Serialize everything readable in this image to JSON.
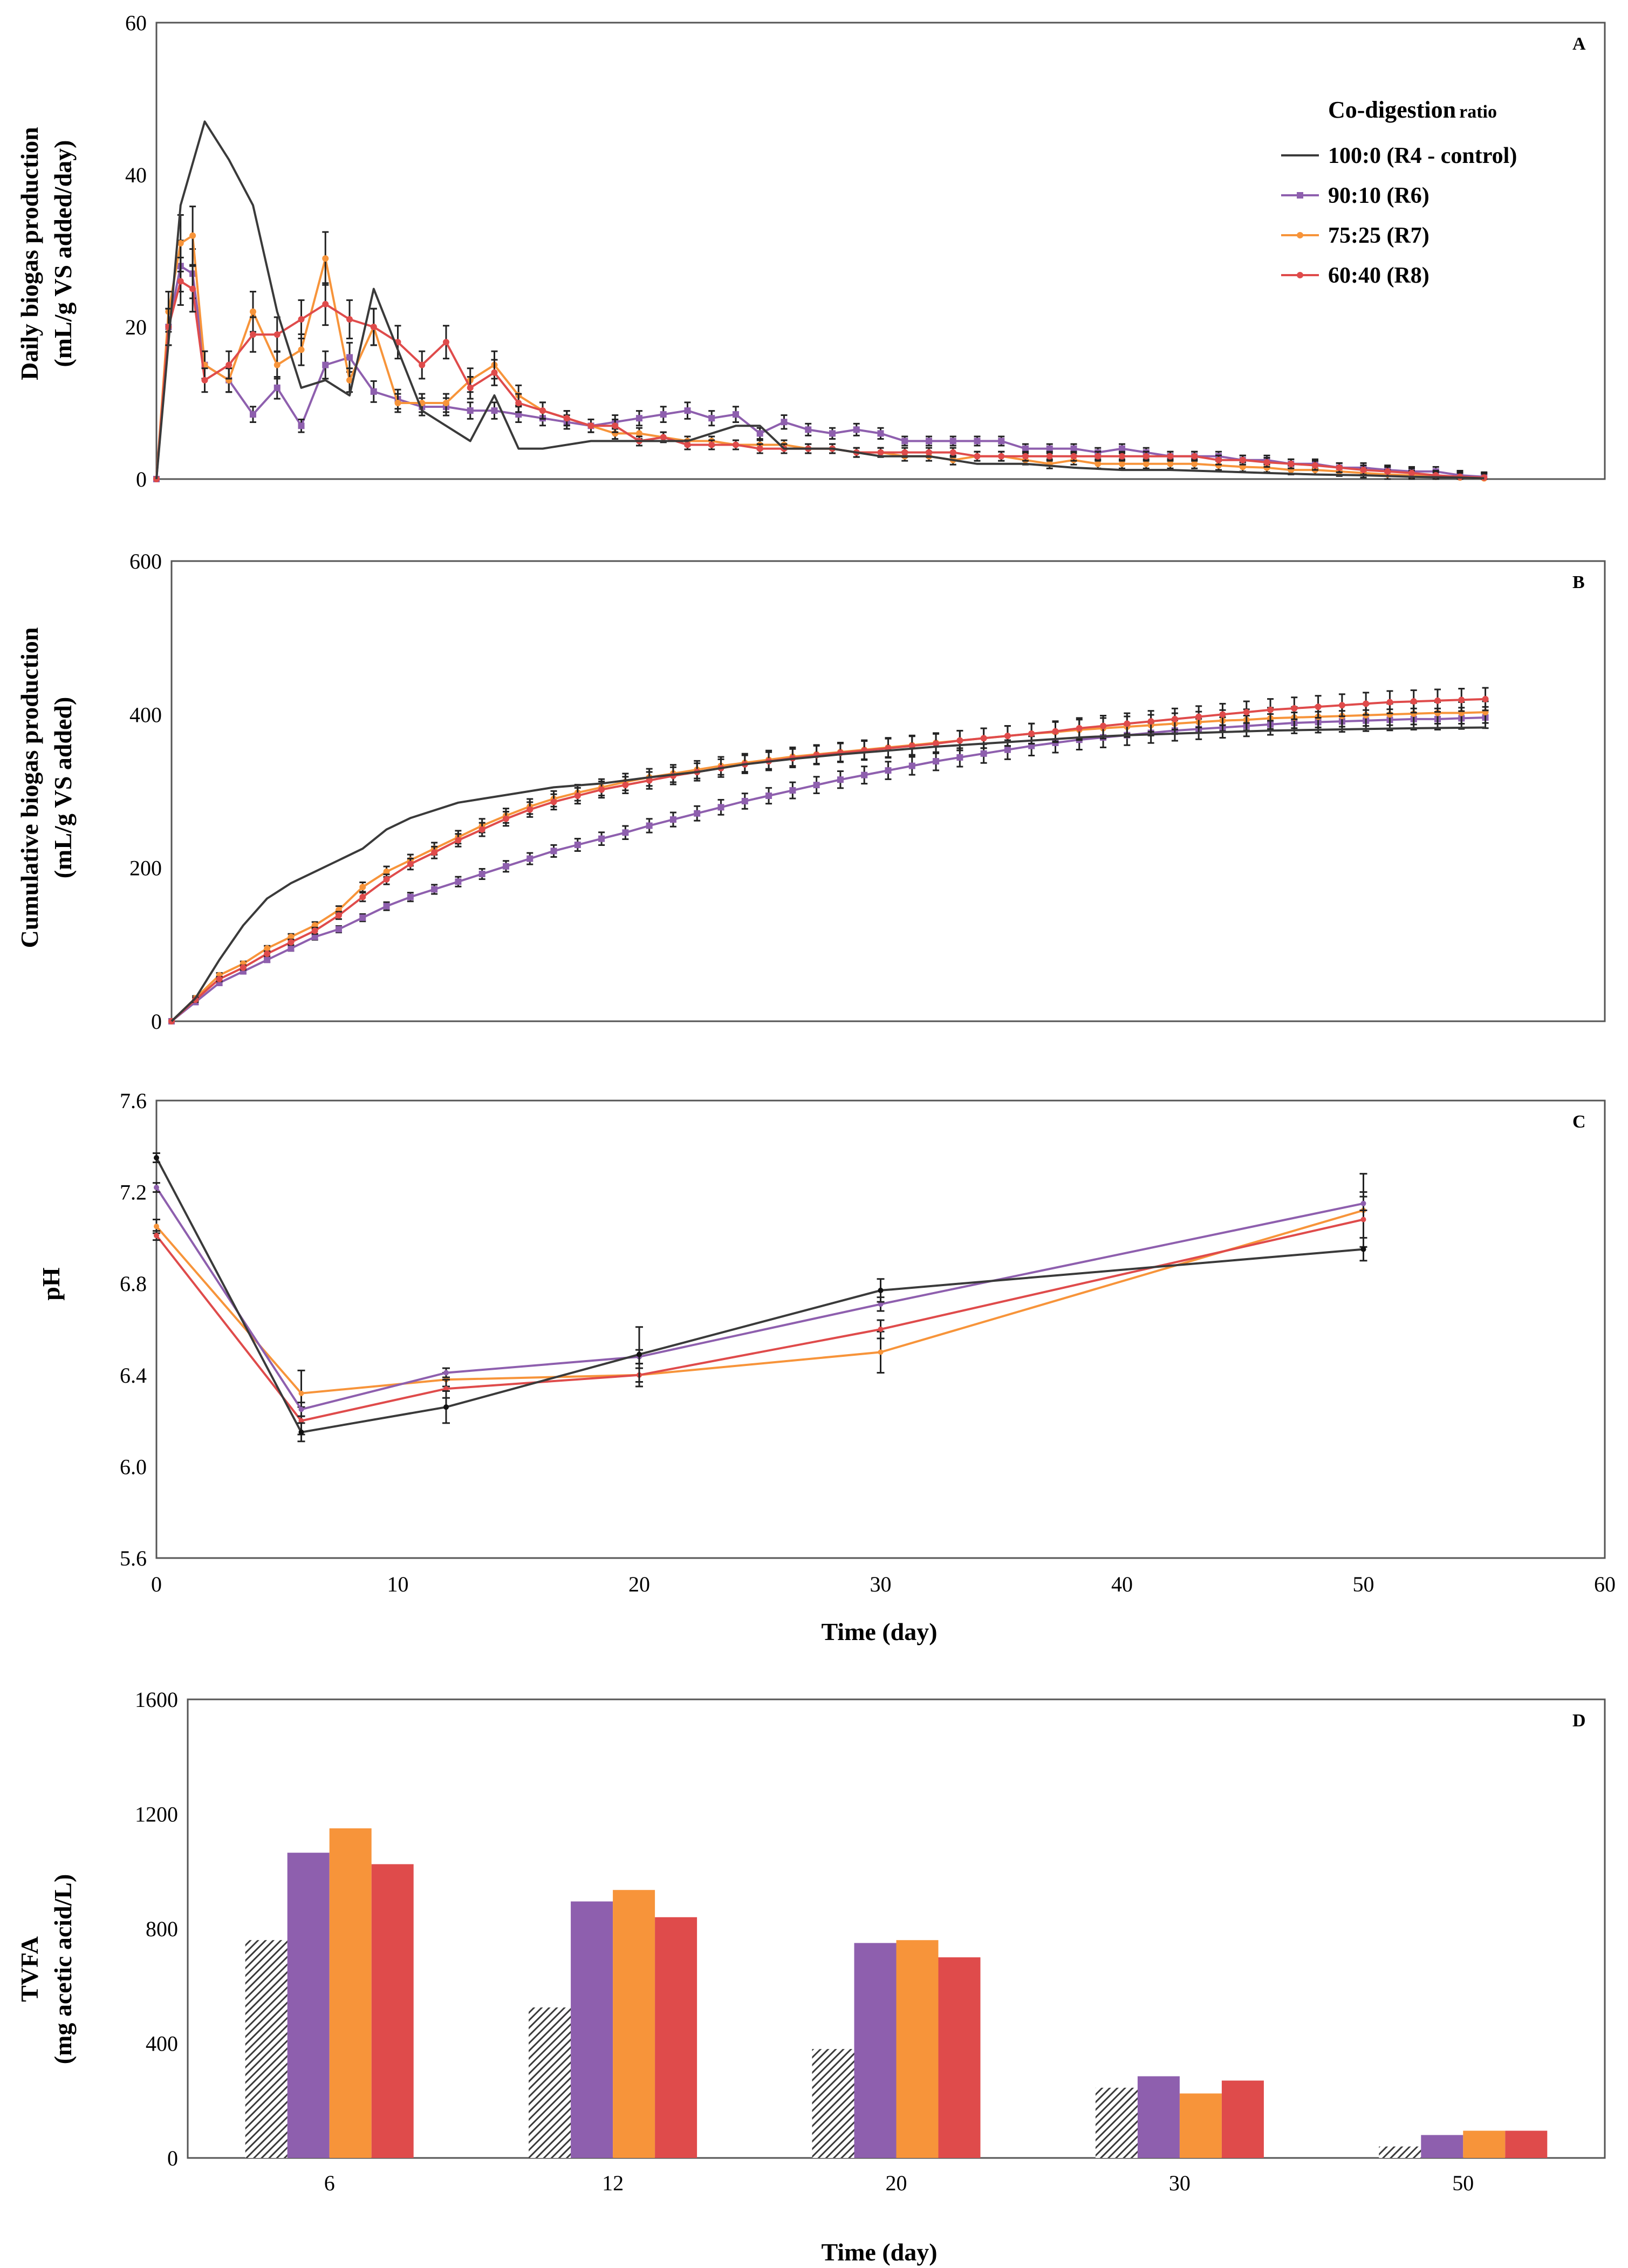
{
  "colors": {
    "R4": "#3a3a3a",
    "R6": "#8e5fae",
    "R7": "#f7943a",
    "R8": "#df4b4b",
    "axis": "#555555"
  },
  "chart_data": [
    {
      "type": "line",
      "panel_label": "A",
      "ylabel_line1": "Daily biogas production",
      "ylabel_line2": "(mL/g VS added/day)",
      "xlim": [
        0,
        60
      ],
      "ylim": [
        0,
        60
      ],
      "yticks": [
        "0",
        "20",
        "40",
        "60"
      ],
      "legend_title": "Co-digestion",
      "legend_subtitle": "ratio",
      "legend_position": "top-right",
      "series": [
        {
          "key": "R4",
          "name": "100:0 (R4 - control)",
          "x": [
            0,
            1,
            2,
            3,
            4,
            5,
            6,
            7,
            8,
            9,
            10,
            11,
            12,
            13,
            14,
            15,
            16,
            18,
            20,
            22,
            24,
            25,
            26,
            28,
            30,
            32,
            34,
            36,
            38,
            40,
            42,
            44,
            46,
            48,
            50,
            52,
            54,
            55
          ],
          "y": [
            0,
            36,
            47,
            42,
            36,
            22,
            12,
            13,
            11,
            25,
            17,
            9,
            7,
            5,
            11,
            4,
            4,
            5,
            5,
            5,
            7,
            7,
            4,
            4,
            3,
            3,
            2,
            2,
            1.5,
            1.2,
            1.2,
            1,
            0.8,
            0.6,
            0.5,
            0.3,
            0.2,
            0.1
          ]
        },
        {
          "key": "R6",
          "name": "90:10 (R6)",
          "x": [
            0,
            0.5,
            1,
            1.5,
            2,
            3,
            4,
            5,
            6,
            7,
            8,
            9,
            10,
            11,
            12,
            13,
            14,
            15,
            16,
            17,
            18,
            19,
            20,
            21,
            22,
            23,
            24,
            25,
            26,
            27,
            28,
            29,
            30,
            31,
            32,
            33,
            34,
            35,
            36,
            37,
            38,
            39,
            40,
            41,
            42,
            43,
            44,
            45,
            46,
            47,
            48,
            49,
            50,
            51,
            52,
            53,
            54,
            55
          ],
          "y": [
            0,
            20,
            28,
            27,
            15,
            13,
            8.5,
            12,
            7,
            15,
            16,
            11.5,
            10.5,
            9.5,
            9.5,
            9,
            9,
            8.5,
            8,
            7.5,
            7,
            7.5,
            8,
            8.5,
            9,
            8,
            8.5,
            6,
            7.5,
            6.5,
            6,
            6.5,
            6,
            5,
            5,
            5,
            5,
            5,
            4,
            4,
            4,
            3.5,
            4,
            3.5,
            3,
            3,
            3,
            2.5,
            2.5,
            2,
            2,
            1.5,
            1.5,
            1.2,
            1,
            1,
            0.5,
            0.3
          ]
        },
        {
          "key": "R7",
          "name": "75:25 (R7)",
          "x": [
            0,
            0.5,
            1,
            1.5,
            2,
            3,
            4,
            5,
            6,
            7,
            8,
            9,
            10,
            11,
            12,
            13,
            14,
            15,
            16,
            17,
            18,
            19,
            20,
            21,
            22,
            23,
            24,
            25,
            26,
            27,
            28,
            29,
            30,
            31,
            32,
            33,
            34,
            35,
            36,
            37,
            38,
            39,
            40,
            41,
            42,
            43,
            44,
            45,
            46,
            47,
            48,
            49,
            50,
            51,
            52,
            53,
            54,
            55
          ],
          "y": [
            0,
            22,
            31,
            32,
            15,
            13,
            22,
            15,
            17,
            29,
            13,
            20,
            10,
            10,
            10,
            13,
            15,
            11,
            9,
            8,
            7,
            6,
            6,
            5.5,
            5,
            5,
            4.5,
            4.5,
            4.5,
            4,
            4,
            3.5,
            3.5,
            3,
            3,
            2.5,
            3,
            3,
            2.5,
            2,
            2.5,
            2,
            2,
            2,
            2,
            2,
            1.8,
            1.6,
            1.5,
            1.2,
            1.2,
            1,
            0.8,
            0.6,
            0.5,
            0.3,
            0.2,
            0.1
          ]
        },
        {
          "key": "R8",
          "name": "60:40 (R8)",
          "x": [
            0,
            0.5,
            1,
            1.5,
            2,
            3,
            4,
            5,
            6,
            7,
            8,
            9,
            10,
            11,
            12,
            13,
            14,
            15,
            16,
            17,
            18,
            19,
            20,
            21,
            22,
            23,
            24,
            25,
            26,
            27,
            28,
            29,
            30,
            31,
            32,
            33,
            34,
            35,
            36,
            37,
            38,
            39,
            40,
            41,
            42,
            43,
            44,
            45,
            46,
            47,
            48,
            49,
            50,
            51,
            52,
            53,
            54,
            55
          ],
          "y": [
            0,
            20,
            26,
            25,
            13,
            15,
            19,
            19,
            21,
            23,
            21,
            20,
            18,
            15,
            18,
            12,
            14,
            10,
            9,
            8,
            7,
            7,
            5,
            5.5,
            4.5,
            4.5,
            4.5,
            4,
            4,
            4,
            4,
            3.5,
            3.5,
            3.5,
            3.5,
            3.5,
            3,
            3,
            3,
            3,
            3,
            3,
            3,
            3,
            3,
            3,
            2.5,
            2.5,
            2.2,
            2,
            1.8,
            1.5,
            1.2,
            1,
            0.8,
            0.5,
            0.3,
            0.2
          ]
        }
      ]
    },
    {
      "type": "line",
      "panel_label": "B",
      "ylabel_line1": "Cumulative biogas production",
      "ylabel_line2": "(mL/g VS added)",
      "xlim": [
        0,
        60
      ],
      "ylim": [
        0,
        600
      ],
      "yticks": [
        "0",
        "200",
        "400",
        "600"
      ],
      "series": [
        {
          "key": "R4",
          "name": "100:0 (R4 - control)",
          "x": [
            0,
            1,
            2,
            3,
            4,
            5,
            6,
            7,
            8,
            9,
            10,
            12,
            14,
            16,
            18,
            20,
            22,
            24,
            26,
            28,
            30,
            32,
            34,
            36,
            38,
            40,
            42,
            44,
            46,
            48,
            50,
            52,
            55
          ],
          "y": [
            0,
            30,
            80,
            125,
            160,
            180,
            195,
            210,
            225,
            250,
            265,
            285,
            295,
            305,
            310,
            318,
            325,
            335,
            342,
            348,
            353,
            358,
            362,
            366,
            370,
            373,
            375,
            377,
            379,
            380,
            381,
            382,
            383
          ]
        },
        {
          "key": "R6",
          "name": "90:10 (R6)",
          "x": [
            0,
            1,
            2,
            3,
            4,
            5,
            6,
            7,
            8,
            9,
            10,
            11,
            12,
            13,
            14,
            15,
            16,
            17,
            18,
            19,
            20,
            21,
            22,
            23,
            24,
            25,
            26,
            27,
            28,
            29,
            30,
            31,
            32,
            33,
            34,
            35,
            36,
            37,
            38,
            39,
            40,
            41,
            42,
            43,
            44,
            45,
            46,
            47,
            48,
            49,
            50,
            51,
            52,
            53,
            54,
            55
          ],
          "y": [
            0,
            25,
            50,
            65,
            80,
            95,
            110,
            120,
            135,
            150,
            162,
            172,
            182,
            192,
            202,
            212,
            222,
            230,
            238,
            246,
            255,
            263,
            271,
            279,
            287,
            294,
            301,
            308,
            315,
            321,
            327,
            333,
            339,
            344,
            349,
            354,
            359,
            363,
            367,
            370,
            373,
            376,
            379,
            381,
            383,
            385,
            387,
            389,
            390,
            391,
            392,
            393,
            394,
            394,
            395,
            396
          ]
        },
        {
          "key": "R7",
          "name": "75:25 (R7)",
          "x": [
            0,
            1,
            2,
            3,
            4,
            5,
            6,
            7,
            8,
            9,
            10,
            11,
            12,
            13,
            14,
            15,
            16,
            17,
            18,
            19,
            20,
            21,
            22,
            23,
            24,
            25,
            26,
            27,
            28,
            29,
            30,
            31,
            32,
            33,
            34,
            35,
            36,
            37,
            38,
            39,
            40,
            41,
            42,
            43,
            44,
            45,
            46,
            47,
            48,
            49,
            50,
            51,
            52,
            53,
            54,
            55
          ],
          "y": [
            0,
            30,
            60,
            75,
            95,
            110,
            125,
            145,
            175,
            195,
            210,
            225,
            240,
            255,
            268,
            280,
            290,
            298,
            305,
            312,
            318,
            323,
            328,
            333,
            337,
            341,
            345,
            348,
            351,
            354,
            357,
            360,
            363,
            366,
            369,
            372,
            375,
            377,
            380,
            382,
            384,
            386,
            388,
            390,
            392,
            393,
            395,
            396,
            397,
            398,
            399,
            400,
            401,
            402,
            402,
            403
          ]
        },
        {
          "key": "R8",
          "name": "60:40 (R8)",
          "x": [
            0,
            1,
            2,
            3,
            4,
            5,
            6,
            7,
            8,
            9,
            10,
            11,
            12,
            13,
            14,
            15,
            16,
            17,
            18,
            19,
            20,
            21,
            22,
            23,
            24,
            25,
            26,
            27,
            28,
            29,
            30,
            31,
            32,
            33,
            34,
            35,
            36,
            37,
            38,
            39,
            40,
            41,
            42,
            43,
            44,
            45,
            46,
            47,
            48,
            49,
            50,
            51,
            52,
            53,
            54,
            55
          ],
          "y": [
            0,
            28,
            55,
            70,
            88,
            103,
            118,
            138,
            162,
            185,
            205,
            220,
            236,
            250,
            264,
            276,
            286,
            294,
            302,
            308,
            314,
            320,
            325,
            330,
            335,
            339,
            343,
            347,
            350,
            353,
            356,
            359,
            362,
            366,
            369,
            372,
            375,
            378,
            382,
            385,
            388,
            391,
            394,
            397,
            400,
            403,
            406,
            408,
            410,
            412,
            414,
            416,
            417,
            418,
            419,
            420
          ]
        }
      ]
    },
    {
      "type": "line",
      "panel_label": "C",
      "ylabel": "pH",
      "xlabel": "Time (day)",
      "xlim": [
        0,
        60
      ],
      "ylim": [
        5.6,
        7.6
      ],
      "yticks": [
        "5.6",
        "6.0",
        "6.4",
        "6.8",
        "7.2",
        "7.6"
      ],
      "xticks": [
        "0",
        "10",
        "20",
        "30",
        "40",
        "50",
        "60"
      ],
      "series": [
        {
          "key": "R4",
          "name": "100:0 (R4 - control)",
          "x": [
            0,
            6,
            12,
            20,
            30,
            50
          ],
          "y": [
            7.35,
            6.15,
            6.26,
            6.49,
            6.77,
            6.95
          ],
          "err": [
            0.02,
            0.04,
            0.07,
            0.12,
            0.05,
            0.05
          ]
        },
        {
          "key": "R6",
          "name": "90:10 (R6)",
          "x": [
            0,
            6,
            12,
            20,
            30,
            50
          ],
          "y": [
            7.22,
            6.25,
            6.41,
            6.48,
            6.71,
            7.15
          ],
          "err": [
            0.02,
            0.03,
            0.02,
            0.03,
            0.03,
            0.03
          ]
        },
        {
          "key": "R7",
          "name": "75:25 (R7)",
          "x": [
            0,
            6,
            12,
            20,
            30,
            50
          ],
          "y": [
            7.05,
            6.32,
            6.38,
            6.4,
            6.5,
            7.12
          ],
          "err": [
            0.03,
            0.1,
            0.03,
            0.03,
            0.09,
            0.16
          ]
        },
        {
          "key": "R8",
          "name": "60:40 (R8)",
          "x": [
            0,
            6,
            12,
            20,
            30,
            50
          ],
          "y": [
            7.01,
            6.2,
            6.34,
            6.4,
            6.6,
            7.08
          ],
          "err": [
            0.02,
            0.06,
            0.04,
            0.05,
            0.04,
            0.12
          ]
        }
      ]
    },
    {
      "type": "bar",
      "panel_label": "D",
      "ylabel_line1": "TVFA",
      "ylabel_line2": "(mg acetic acid/L)",
      "xlabel": "Time (day)",
      "categories": [
        "6",
        "12",
        "20",
        "30",
        "50"
      ],
      "ylim": [
        0,
        1600
      ],
      "yticks": [
        "0",
        "400",
        "800",
        "1200",
        "1600"
      ],
      "series": [
        {
          "key": "R4",
          "name": "100:0 (R4 - control)",
          "values": [
            760,
            525,
            380,
            245,
            40
          ]
        },
        {
          "key": "R6",
          "name": "90:10 (R6)",
          "values": [
            1065,
            895,
            750,
            285,
            80
          ]
        },
        {
          "key": "R7",
          "name": "75:25 (R7)",
          "values": [
            1150,
            935,
            760,
            225,
            95
          ]
        },
        {
          "key": "R8",
          "name": "60:40 (R8)",
          "values": [
            1025,
            840,
            700,
            270,
            95
          ]
        }
      ]
    }
  ]
}
